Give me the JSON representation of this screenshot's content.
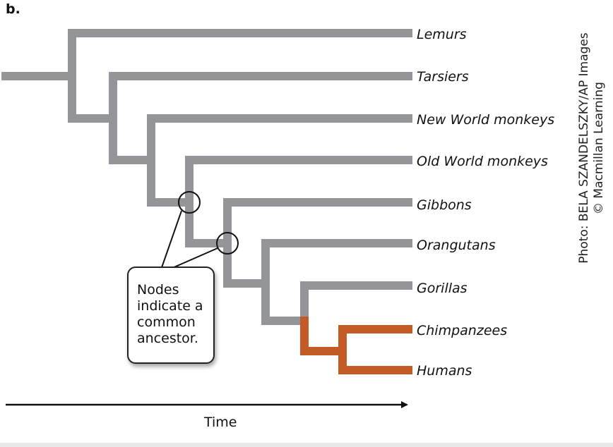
{
  "panel_label": "b.",
  "taxa": [
    "Lemurs",
    "Tarsiers",
    "New World monkeys",
    "Old World monkeys",
    "Gibbons",
    "Orangutans",
    "Gorillas",
    "Chimpanzees",
    "Humans"
  ],
  "callout_lines": [
    "Nodes",
    "indicate a",
    "common",
    "ancestor."
  ],
  "axis_label": "Time",
  "credit_lines": [
    "Photo: BELA SZANDELSZKY/AP Images",
    "© Macmillan Learning"
  ],
  "colors": {
    "branch": "#939598",
    "highlight": "#c45a26",
    "ink": "#111111"
  }
}
